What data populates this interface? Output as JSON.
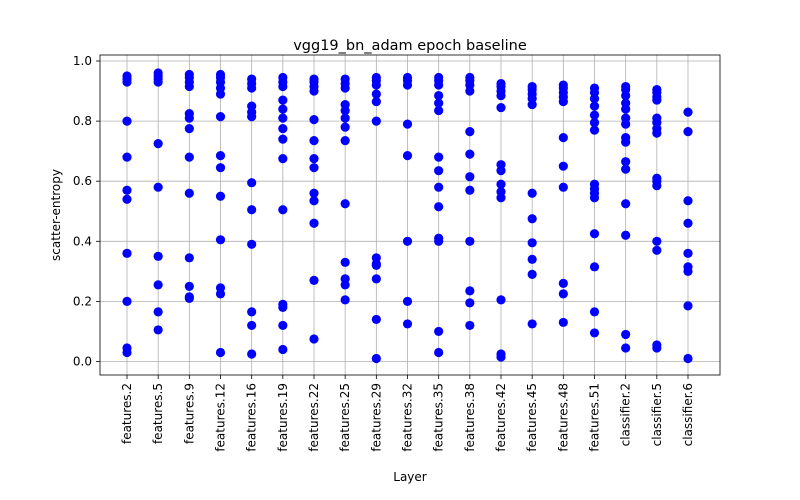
{
  "chart_data": {
    "type": "scatter",
    "title": "vgg19_bn_adam epoch baseline",
    "xlabel": "Layer",
    "ylabel": "scatter-entropy",
    "ylim": [
      -0.045,
      1.02
    ],
    "yticks": [
      "0.0",
      "0.2",
      "0.4",
      "0.6",
      "0.8",
      "1.0"
    ],
    "grid": true,
    "marker_color": "#0000ff",
    "categories": [
      "features.2",
      "features.5",
      "features.9",
      "features.12",
      "features.16",
      "features.19",
      "features.22",
      "features.25",
      "features.29",
      "features.32",
      "features.35",
      "features.38",
      "features.42",
      "features.45",
      "features.48",
      "features.51",
      "classifier.2",
      "classifier.5",
      "classifier.6"
    ],
    "points": [
      [
        0.95,
        0.94,
        0.93,
        0.8,
        0.68,
        0.57,
        0.54,
        0.36,
        0.2,
        0.045,
        0.03
      ],
      [
        0.96,
        0.95,
        0.94,
        0.93,
        0.725,
        0.58,
        0.35,
        0.255,
        0.165,
        0.105
      ],
      [
        0.955,
        0.945,
        0.93,
        0.915,
        0.825,
        0.81,
        0.775,
        0.68,
        0.56,
        0.345,
        0.25,
        0.215,
        0.21
      ],
      [
        0.955,
        0.945,
        0.93,
        0.91,
        0.89,
        0.815,
        0.685,
        0.645,
        0.55,
        0.405,
        0.245,
        0.225,
        0.03
      ],
      [
        0.94,
        0.925,
        0.91,
        0.85,
        0.83,
        0.815,
        0.595,
        0.505,
        0.39,
        0.165,
        0.12,
        0.025
      ],
      [
        0.945,
        0.93,
        0.915,
        0.87,
        0.84,
        0.81,
        0.775,
        0.74,
        0.675,
        0.505,
        0.19,
        0.18,
        0.12,
        0.04
      ],
      [
        0.94,
        0.93,
        0.915,
        0.9,
        0.805,
        0.735,
        0.675,
        0.645,
        0.56,
        0.535,
        0.46,
        0.27,
        0.075
      ],
      [
        0.94,
        0.925,
        0.91,
        0.855,
        0.835,
        0.81,
        0.78,
        0.735,
        0.525,
        0.33,
        0.275,
        0.255,
        0.205
      ],
      [
        0.945,
        0.935,
        0.92,
        0.89,
        0.865,
        0.8,
        0.345,
        0.325,
        0.32,
        0.275,
        0.14,
        0.01
      ],
      [
        0.945,
        0.935,
        0.92,
        0.79,
        0.685,
        0.4,
        0.2,
        0.125
      ],
      [
        0.945,
        0.935,
        0.92,
        0.885,
        0.86,
        0.835,
        0.68,
        0.635,
        0.58,
        0.515,
        0.41,
        0.4,
        0.1,
        0.03
      ],
      [
        0.945,
        0.935,
        0.92,
        0.9,
        0.765,
        0.69,
        0.615,
        0.57,
        0.4,
        0.235,
        0.195,
        0.12
      ],
      [
        0.925,
        0.915,
        0.9,
        0.885,
        0.845,
        0.655,
        0.635,
        0.59,
        0.565,
        0.545,
        0.205,
        0.025,
        0.015
      ],
      [
        0.915,
        0.905,
        0.89,
        0.875,
        0.855,
        0.56,
        0.475,
        0.395,
        0.34,
        0.29,
        0.125
      ],
      [
        0.92,
        0.91,
        0.895,
        0.88,
        0.865,
        0.745,
        0.65,
        0.58,
        0.26,
        0.225,
        0.13
      ],
      [
        0.91,
        0.895,
        0.875,
        0.85,
        0.82,
        0.795,
        0.77,
        0.59,
        0.575,
        0.56,
        0.545,
        0.425,
        0.315,
        0.165,
        0.095
      ],
      [
        0.915,
        0.905,
        0.885,
        0.86,
        0.84,
        0.81,
        0.79,
        0.745,
        0.73,
        0.665,
        0.64,
        0.525,
        0.42,
        0.09,
        0.045
      ],
      [
        0.905,
        0.895,
        0.88,
        0.87,
        0.81,
        0.795,
        0.775,
        0.76,
        0.61,
        0.6,
        0.585,
        0.4,
        0.37,
        0.055,
        0.045
      ],
      [
        0.83,
        0.765,
        0.535,
        0.46,
        0.36,
        0.315,
        0.3,
        0.185,
        0.01
      ]
    ]
  }
}
